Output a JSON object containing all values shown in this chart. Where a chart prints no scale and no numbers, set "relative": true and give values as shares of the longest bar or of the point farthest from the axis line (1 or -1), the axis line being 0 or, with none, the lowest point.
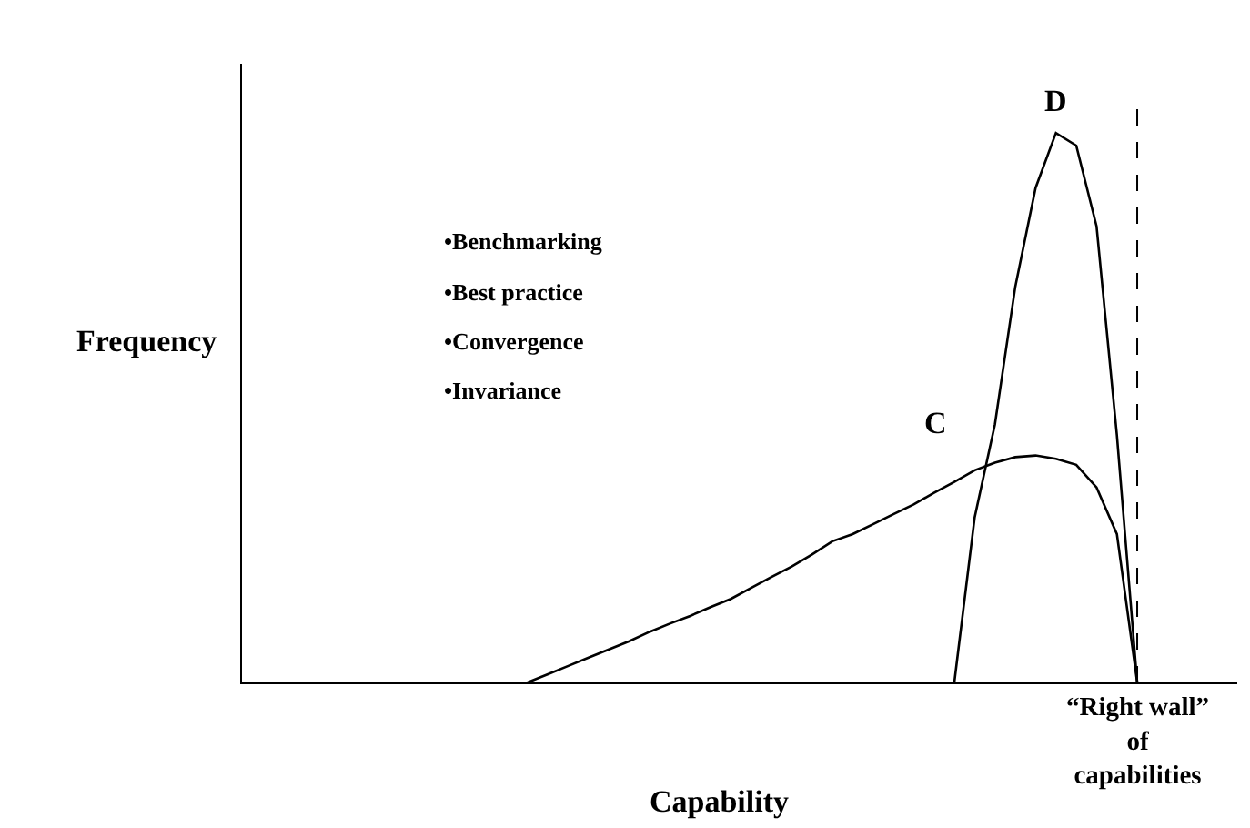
{
  "chart_data": {
    "type": "line",
    "relative": true,
    "xlabel": "Capability",
    "legend": false,
    "marker": "none",
    "line_style": "solid",
    "categories": [
      null,
      null,
      null,
      null,
      null,
      null,
      null,
      null,
      null,
      null,
      null,
      null,
      null,
      null,
      null,
      null,
      null,
      null,
      null,
      null,
      null,
      null,
      null,
      null,
      null,
      null,
      null,
      null,
      null,
      null,
      null
    ],
    "annotations": [
      "“Right wall” of capabilities",
      "Frequency",
      "•Benchmarking",
      "•Best practice",
      "•Convergence",
      "•Invariance"
    ],
    "series": [
      {
        "name": "C",
        "color": "#000000",
        "values": [
          0,
          0.015,
          0.03,
          0.045,
          0.06,
          0.075,
          0.092,
          0.107,
          0.121,
          0.137,
          0.152,
          0.172,
          0.192,
          0.211,
          0.233,
          0.257,
          0.27,
          0.288,
          0.306,
          0.324,
          0.345,
          0.365,
          0.386,
          0.4,
          0.41,
          0.413,
          0.407,
          0.396,
          0.355,
          0.27,
          0
        ]
      },
      {
        "name": "D",
        "color": "#000000",
        "values": [
          null,
          null,
          null,
          null,
          null,
          null,
          null,
          null,
          null,
          null,
          null,
          null,
          null,
          null,
          null,
          null,
          null,
          null,
          null,
          null,
          null,
          0,
          0.3,
          0.47,
          0.72,
          0.9,
          1,
          0.977,
          0.83,
          0.45,
          0
        ]
      }
    ]
  }
}
